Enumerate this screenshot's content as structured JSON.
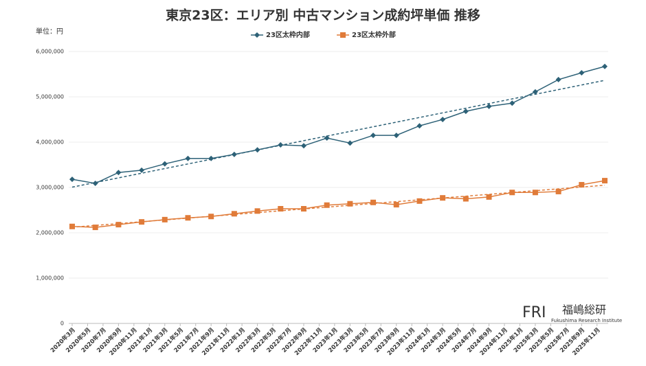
{
  "chart_data": {
    "type": "line",
    "title": "東京23区：エリア別 中古マンション成約坪単価 推移",
    "unit_label": "単位：円",
    "logo": {
      "mark": "FRI",
      "name": "福嶋総研",
      "sub": "Fukushima Research Institute"
    },
    "x": [
      "2020-03",
      "2020-06",
      "2020-09",
      "2020-12",
      "2021-03",
      "2021-06",
      "2021-09",
      "2021-12",
      "2022-03",
      "2022-06",
      "2022-09",
      "2022-12",
      "2023-03",
      "2023-06",
      "2023-09",
      "2023-12",
      "2024-03",
      "2024-06",
      "2024-09",
      "2024-12",
      "2025-03",
      "2025-06",
      "2025-09",
      "2025-12"
    ],
    "xlim": [
      "2020-03",
      "2025-12"
    ],
    "xticks": [
      {
        "value": "2020-03",
        "label": "2020年3月"
      },
      {
        "value": "2020-05",
        "label": "2020年5月"
      },
      {
        "value": "2020-07",
        "label": "2020年7月"
      },
      {
        "value": "2020-09",
        "label": "2020年9月"
      },
      {
        "value": "2020-11",
        "label": "2020年11月"
      },
      {
        "value": "2021-01",
        "label": "2021年1月"
      },
      {
        "value": "2021-03",
        "label": "2021年3月"
      },
      {
        "value": "2021-05",
        "label": "2021年5月"
      },
      {
        "value": "2021-07",
        "label": "2021年7月"
      },
      {
        "value": "2021-09",
        "label": "2021年9月"
      },
      {
        "value": "2021-11",
        "label": "2021年11月"
      },
      {
        "value": "2022-01",
        "label": "2022年1月"
      },
      {
        "value": "2022-03",
        "label": "2022年3月"
      },
      {
        "value": "2022-05",
        "label": "2022年5月"
      },
      {
        "value": "2022-07",
        "label": "2022年7月"
      },
      {
        "value": "2022-09",
        "label": "2022年9月"
      },
      {
        "value": "2022-11",
        "label": "2022年11月"
      },
      {
        "value": "2023-01",
        "label": "2023年1月"
      },
      {
        "value": "2023-03",
        "label": "2023年3月"
      },
      {
        "value": "2023-05",
        "label": "2023年5月"
      },
      {
        "value": "2023-07",
        "label": "2023年7月"
      },
      {
        "value": "2023-09",
        "label": "2023年9月"
      },
      {
        "value": "2023-11",
        "label": "2023年11月"
      },
      {
        "value": "2024-01",
        "label": "2024年1月"
      },
      {
        "value": "2024-03",
        "label": "2024年3月"
      },
      {
        "value": "2024-05",
        "label": "2024年5月"
      },
      {
        "value": "2024-07",
        "label": "2024年7月"
      },
      {
        "value": "2024-09",
        "label": "2024年9月"
      },
      {
        "value": "2024-11",
        "label": "2024年11月"
      },
      {
        "value": "2025-01",
        "label": "2025年1月"
      },
      {
        "value": "2025-03",
        "label": "2025年3月"
      },
      {
        "value": "2025-05",
        "label": "2025年5月"
      },
      {
        "value": "2025-07",
        "label": "2025年7月"
      },
      {
        "value": "2025-09",
        "label": "2025年9月"
      },
      {
        "value": "2025-11",
        "label": "2025年11月"
      }
    ],
    "ylim": [
      0,
      6000000
    ],
    "yticks": [
      0,
      {
        "value": 1000000,
        "label": "1,000,000"
      },
      {
        "value": 2000000,
        "label": "2,000,000"
      },
      {
        "value": 3000000,
        "label": "3,000,000"
      },
      {
        "value": 4000000,
        "label": "4,000,000"
      },
      {
        "value": 5000000,
        "label": "5,000,000"
      },
      {
        "value": 6000000,
        "label": "6,000,000"
      }
    ],
    "trendline": true,
    "series": [
      {
        "name": "23区太枠内部",
        "color": "#2d6177",
        "marker": "diamond",
        "values": [
          3180000,
          3090000,
          3330000,
          3380000,
          3520000,
          3640000,
          3640000,
          3730000,
          3830000,
          3940000,
          3920000,
          4090000,
          3980000,
          4150000,
          4150000,
          4360000,
          4500000,
          4680000,
          4790000,
          4860000,
          5110000,
          5380000,
          5530000,
          5670000
        ]
      },
      {
        "name": "23区太枠外部",
        "color": "#e07b39",
        "marker": "square",
        "values": [
          2140000,
          2120000,
          2180000,
          2240000,
          2290000,
          2330000,
          2360000,
          2420000,
          2480000,
          2530000,
          2530000,
          2610000,
          2640000,
          2670000,
          2620000,
          2700000,
          2770000,
          2750000,
          2790000,
          2890000,
          2890000,
          2910000,
          3060000,
          3150000
        ]
      }
    ]
  }
}
